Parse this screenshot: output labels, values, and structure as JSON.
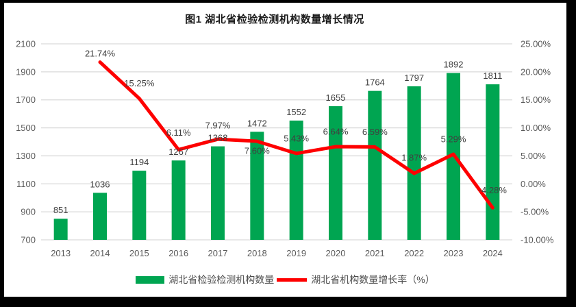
{
  "title": "图1 湖北省检验检测机构数量增长情况",
  "chart_data": {
    "type": "bar+line",
    "title": "图1 湖北省检验检测机构数量增长情况",
    "categories": [
      "2013",
      "2014",
      "2015",
      "2016",
      "2017",
      "2018",
      "2019",
      "2020",
      "2021",
      "2022",
      "2023",
      "2024"
    ],
    "series": [
      {
        "name": "湖北省检验检测机构数量",
        "type": "bar",
        "axis": "left",
        "color": "#00A551",
        "values": [
          851,
          1036,
          1194,
          1267,
          1368,
          1472,
          1552,
          1655,
          1764,
          1797,
          1892,
          1811
        ]
      },
      {
        "name": "湖北省机构数量增长率（%）",
        "type": "line",
        "axis": "right",
        "color": "#FE0000",
        "values": [
          null,
          21.74,
          15.25,
          6.11,
          7.97,
          7.6,
          5.43,
          6.64,
          6.59,
          1.87,
          5.29,
          -4.28
        ],
        "labels": [
          null,
          "21.74%",
          "15.25%",
          "6.11%",
          "7.97%",
          "7.60%",
          "5.43%",
          "6.64%",
          "6.59%",
          "1.87%",
          "5.29%",
          "-4.28%"
        ]
      }
    ],
    "left_axis": {
      "min": 700,
      "max": 2100,
      "step": 200,
      "ticks": [
        "2100",
        "1900",
        "1700",
        "1500",
        "1300",
        "1100",
        "900",
        "700"
      ]
    },
    "right_axis": {
      "min": -10,
      "max": 25,
      "step": 5,
      "ticks": [
        "25.00%",
        "20.00%",
        "15.00%",
        "10.00%",
        "5.00%",
        "0.00%",
        "-5.00%",
        "-10.00%"
      ]
    },
    "grid": true,
    "legend_position": "bottom",
    "colors": {
      "bar": "#00A551",
      "line": "#FE0000",
      "grid": "#D9D9D9",
      "axis_text": "#595959",
      "label_text": "#404040",
      "title_text": "#1A1A1A",
      "frame": "#000000"
    },
    "label_layout": {
      "rate_label_dy": [
        0,
        -8,
        -17.5,
        -20.5,
        -15.5,
        18.5,
        -17.5,
        -17.5,
        -17.5,
        -18.5,
        -17.5,
        -21.5
      ]
    }
  },
  "legend": {
    "bar_label": "湖北省检验检测机构数量",
    "line_label": "湖北省机构数量增长率（%）"
  }
}
